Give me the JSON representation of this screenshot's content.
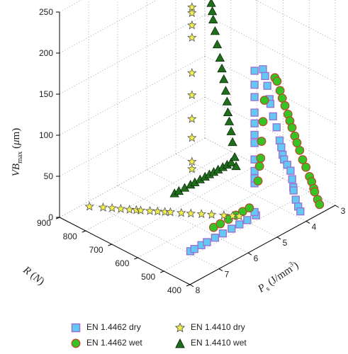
{
  "chart_data": {
    "type": "scatter",
    "title": "",
    "xlabel": "P_s (J/mm^3)",
    "ylabel": "R (N)",
    "zlabel": "VB_max (μm)",
    "x_ticks": [
      3,
      4,
      5,
      6,
      7,
      8
    ],
    "y_ticks": [
      400,
      500,
      600,
      700,
      800,
      900
    ],
    "z_ticks": [
      0,
      50,
      100,
      150,
      200,
      250
    ],
    "xlim": [
      3,
      8
    ],
    "ylim": [
      400,
      900
    ],
    "zlim": [
      0,
      250
    ],
    "grid": true,
    "legend_position": "bottom",
    "series": [
      {
        "name": "EN 1.4462 dry",
        "marker": "square",
        "color": "#63c8f2",
        "edge": "#9a6fd0",
        "points": [
          [
            6.91,
            520,
            0
          ],
          [
            6.77,
            520,
            0
          ],
          [
            6.53,
            520,
            0
          ],
          [
            6.34,
            520,
            0
          ],
          [
            6.06,
            520,
            0
          ],
          [
            5.79,
            520,
            0
          ],
          [
            5.49,
            520,
            0
          ],
          [
            5.22,
            520,
            0
          ],
          [
            4.95,
            520,
            0
          ],
          [
            4.65,
            520,
            0
          ],
          [
            4.7,
            520,
            5
          ],
          [
            4.7,
            520,
            40
          ],
          [
            4.7,
            520,
            46
          ],
          [
            4.7,
            520,
            55
          ],
          [
            4.7,
            520,
            69
          ],
          [
            4.7,
            520,
            89
          ],
          [
            4.7,
            520,
            99
          ],
          [
            4.7,
            520,
            113
          ],
          [
            4.7,
            520,
            126
          ],
          [
            4.7,
            520,
            145
          ],
          [
            4.7,
            520,
            160
          ],
          [
            4.7,
            520,
            177
          ],
          [
            4.59,
            500,
            180
          ],
          [
            4.56,
            495,
            172
          ],
          [
            4.52,
            491,
            160
          ],
          [
            4.49,
            486,
            144
          ],
          [
            4.47,
            485,
            138
          ],
          [
            4.43,
            479,
            123
          ],
          [
            4.38,
            471,
            110
          ],
          [
            4.33,
            465,
            94
          ],
          [
            4.31,
            461,
            86
          ],
          [
            4.29,
            458,
            77
          ],
          [
            4.26,
            456,
            71
          ],
          [
            4.22,
            448,
            65
          ],
          [
            4.17,
            441,
            58
          ],
          [
            4.15,
            437,
            48
          ],
          [
            4.13,
            435,
            38
          ],
          [
            4.12,
            435,
            34
          ],
          [
            4.09,
            430,
            23
          ],
          [
            4.06,
            424,
            15
          ],
          [
            4.02,
            420,
            9
          ]
        ]
      },
      {
        "name": "EN 1.4462 wet",
        "marker": "circle",
        "color": "#35c423",
        "edge": "#b84a2a",
        "points": [
          [
            5.75,
            560,
            0
          ],
          [
            5.52,
            560,
            0
          ],
          [
            5.24,
            560,
            0
          ],
          [
            4.98,
            560,
            0
          ],
          [
            4.75,
            560,
            0
          ],
          [
            4.52,
            560,
            0
          ],
          [
            4.22,
            560,
            27
          ],
          [
            4.17,
            560,
            44
          ],
          [
            4.13,
            560,
            53
          ],
          [
            4.1,
            560,
            73
          ],
          [
            4.05,
            560,
            96
          ],
          [
            4.0,
            560,
            121
          ],
          [
            4.0,
            520,
            155
          ],
          [
            3.97,
            515,
            151
          ],
          [
            3.93,
            508,
            140
          ],
          [
            3.9,
            503,
            131
          ],
          [
            3.86,
            497,
            122
          ],
          [
            3.82,
            490,
            112
          ],
          [
            3.79,
            486,
            104
          ],
          [
            3.76,
            481,
            96
          ],
          [
            3.72,
            475,
            86
          ],
          [
            3.69,
            470,
            78
          ],
          [
            3.65,
            464,
            69
          ],
          [
            3.61,
            457,
            58
          ],
          [
            3.56,
            450,
            49
          ],
          [
            3.51,
            442,
            38
          ],
          [
            3.48,
            437,
            32
          ],
          [
            3.45,
            432,
            24
          ],
          [
            3.44,
            430,
            20
          ],
          [
            3.4,
            423,
            11
          ],
          [
            3.37,
            419,
            5
          ]
        ]
      },
      {
        "name": "EN 1.4410 dry",
        "marker": "star",
        "color": "#f4f04a",
        "edge": "#555555",
        "points": [
          [
            7.15,
            880,
            0
          ],
          [
            6.95,
            850,
            0
          ],
          [
            6.82,
            830,
            0
          ],
          [
            6.7,
            810,
            0
          ],
          [
            6.58,
            790,
            0
          ],
          [
            6.48,
            775,
            0
          ],
          [
            6.42,
            765,
            0
          ],
          [
            6.28,
            745,
            0
          ],
          [
            6.17,
            728,
            0
          ],
          [
            6.06,
            712,
            0
          ],
          [
            5.98,
            700,
            0
          ],
          [
            5.82,
            676,
            0
          ],
          [
            5.68,
            655,
            0
          ],
          [
            5.52,
            632,
            0
          ],
          [
            5.37,
            610,
            0
          ],
          [
            5.19,
            583,
            0
          ],
          [
            5.06,
            564,
            0
          ],
          [
            4.96,
            550,
            0
          ],
          [
            4.7,
            760,
            18
          ],
          [
            4.7,
            760,
            27
          ],
          [
            4.7,
            760,
            56
          ],
          [
            4.7,
            760,
            79
          ],
          [
            4.7,
            760,
            108
          ],
          [
            4.7,
            760,
            135
          ],
          [
            4.7,
            760,
            178
          ],
          [
            4.7,
            760,
            193
          ],
          [
            4.7,
            760,
            208
          ],
          [
            4.7,
            760,
            215
          ],
          [
            4.7,
            760,
            230
          ],
          [
            4.7,
            760,
            235
          ],
          [
            4.7,
            760,
            243
          ],
          [
            4.7,
            760,
            252
          ],
          [
            4.7,
            760,
            262
          ],
          [
            4.7,
            760,
            271
          ],
          [
            4.7,
            760,
            288
          ]
        ]
      },
      {
        "name": "EN 1.4410 wet",
        "marker": "triangle",
        "color": "#1f6e1c",
        "edge": "#0a2a09",
        "points": [
          [
            5.3,
            760,
            0
          ],
          [
            5.15,
            760,
            0
          ],
          [
            4.95,
            760,
            0
          ],
          [
            4.75,
            760,
            0
          ],
          [
            4.6,
            760,
            0
          ],
          [
            4.42,
            760,
            0
          ],
          [
            4.25,
            760,
            0
          ],
          [
            4.1,
            760,
            0
          ],
          [
            3.95,
            760,
            0
          ],
          [
            3.8,
            760,
            0
          ],
          [
            3.64,
            760,
            0
          ],
          [
            3.49,
            760,
            0
          ],
          [
            3.35,
            760,
            0
          ],
          [
            3.63,
            710,
            9
          ],
          [
            3.65,
            713,
            20
          ],
          [
            3.68,
            718,
            38
          ],
          [
            3.7,
            721,
            51
          ],
          [
            3.73,
            725,
            63
          ],
          [
            3.75,
            728,
            74
          ],
          [
            3.76,
            730,
            87
          ],
          [
            3.78,
            733,
            100
          ],
          [
            3.81,
            737,
            114
          ],
          [
            3.84,
            741,
            127
          ],
          [
            3.87,
            745,
            140
          ],
          [
            3.91,
            751,
            156
          ],
          [
            3.94,
            756,
            172
          ],
          [
            3.97,
            760,
            186
          ],
          [
            3.98,
            762,
            196
          ],
          [
            4.0,
            764,
            206
          ],
          [
            4.02,
            767,
            216
          ],
          [
            4.03,
            769,
            225
          ],
          [
            4.05,
            772,
            233
          ],
          [
            4.05,
            772,
            238
          ],
          [
            4.07,
            774,
            244
          ],
          [
            4.08,
            776,
            249
          ],
          [
            4.1,
            779,
            257
          ]
        ]
      }
    ]
  }
}
